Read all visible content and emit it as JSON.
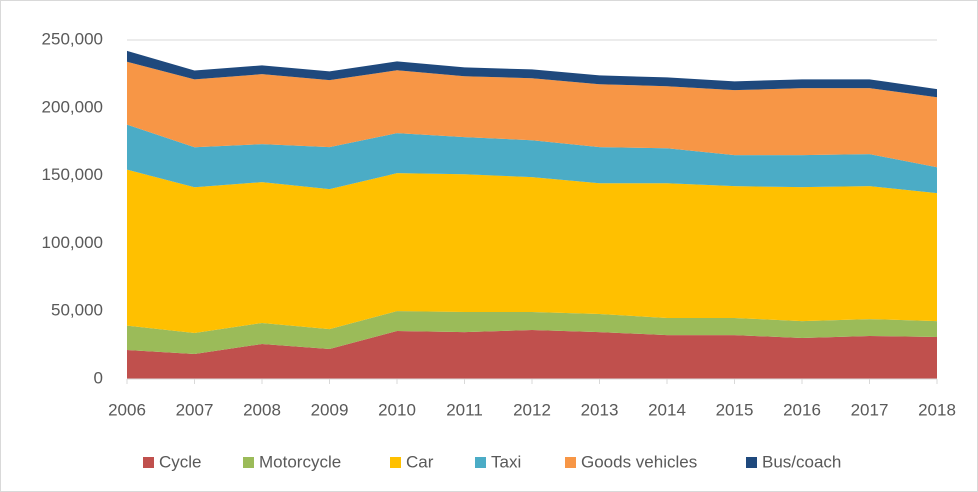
{
  "chart_data": {
    "type": "stacked_area",
    "categories": [
      "2006",
      "2007",
      "2008",
      "2009",
      "2010",
      "2011",
      "2012",
      "2013",
      "2014",
      "2015",
      "2016",
      "2017",
      "2018"
    ],
    "series": [
      {
        "name": "Cycle",
        "color": "#c0504d",
        "values": [
          21400,
          18400,
          25800,
          22100,
          35400,
          34600,
          36100,
          34600,
          32400,
          32400,
          30200,
          31700,
          31000
        ]
      },
      {
        "name": "Motorcycle",
        "color": "#9bbb59",
        "values": [
          18000,
          15500,
          15500,
          14700,
          14700,
          14800,
          13300,
          13300,
          12600,
          12600,
          12500,
          12500,
          11700
        ]
      },
      {
        "name": "Car",
        "color": "#ffc000",
        "values": [
          115000,
          107500,
          103900,
          103200,
          101700,
          101600,
          99500,
          96500,
          99400,
          97200,
          98800,
          98000,
          94400
        ]
      },
      {
        "name": "Taxi",
        "color": "#4bacc6",
        "values": [
          33200,
          29500,
          28000,
          31000,
          29500,
          27400,
          27200,
          26600,
          25800,
          22900,
          23600,
          23600,
          19100
        ]
      },
      {
        "name": "Goods vehicles",
        "color": "#f79646",
        "values": [
          46400,
          50100,
          51600,
          49400,
          46400,
          44900,
          45700,
          46400,
          45700,
          47900,
          49400,
          48700,
          51600
        ]
      },
      {
        "name": "Bus/coach",
        "color": "#1f497d",
        "values": [
          8000,
          6500,
          6500,
          6500,
          6500,
          6500,
          6500,
          6500,
          6500,
          6500,
          6500,
          6500,
          6000
        ]
      }
    ],
    "ylim": [
      0,
      250000
    ],
    "yticks": [
      0,
      {
        "value": 50000,
        "label": "50,000"
      },
      {
        "value": 100000,
        "label": "100,000"
      },
      {
        "value": 150000,
        "label": "150,000"
      },
      {
        "value": 200000,
        "label": "200,000"
      },
      {
        "value": 250000,
        "label": "250,000"
      }
    ],
    "grid": true,
    "legend": "bottom"
  }
}
